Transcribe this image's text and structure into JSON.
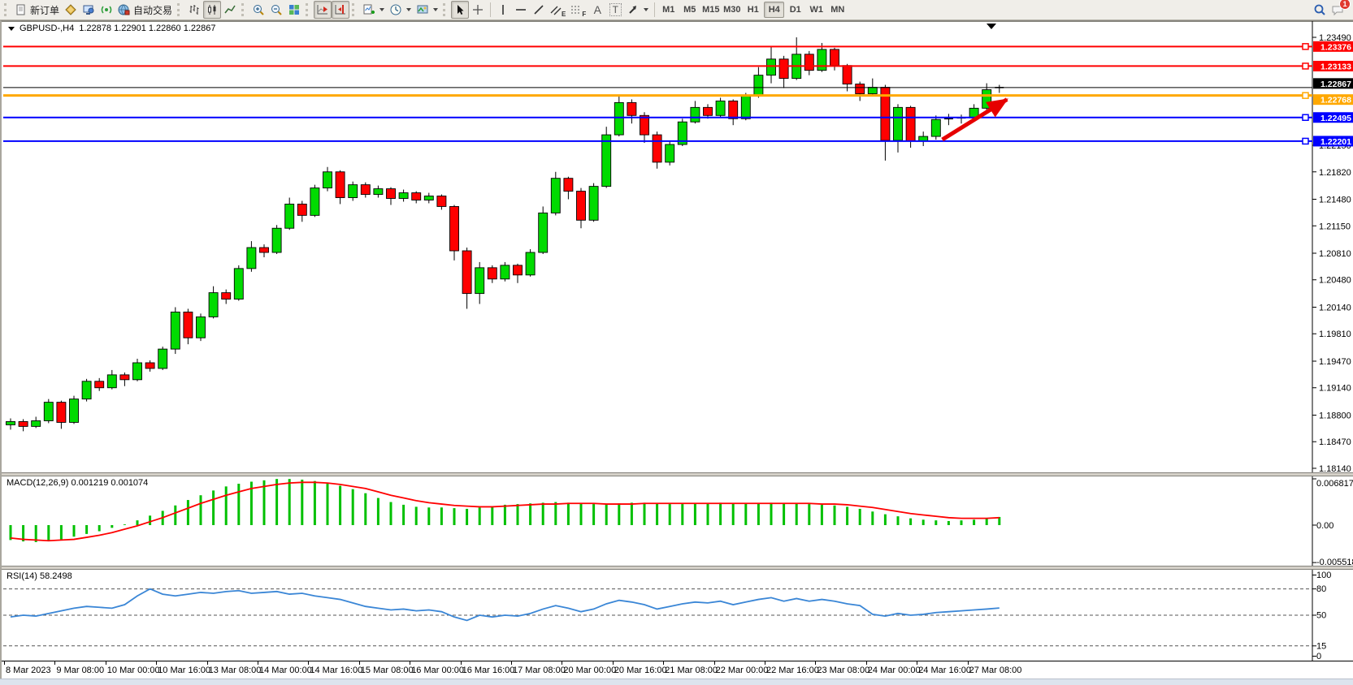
{
  "toolbar": {
    "new_order_label": "新订单",
    "auto_trading_label": "自动交易",
    "channel_letter": "E",
    "fibo_letter": "F",
    "text_letter": "A",
    "label_letter": "T",
    "timeframes": [
      "M1",
      "M5",
      "M15",
      "M30",
      "H1",
      "H4",
      "D1",
      "W1",
      "MN"
    ],
    "active_timeframe": "H4",
    "notification_count": "1"
  },
  "chart_header": {
    "symbol": "GBPUSD-,H4",
    "quotes": "1.22878 1.22901 1.22860 1.22867"
  },
  "indicators": {
    "macd_label": "MACD(12,26,9) 0.001219 0.001074",
    "rsi_label": "RSI(14) 58.2498"
  },
  "chart_data": {
    "type": "candlestick",
    "symbol": "GBPUSD-",
    "timeframe": "H4",
    "ohlc_current": {
      "open": 1.22878,
      "high": 1.22901,
      "low": 1.2286,
      "close": 1.22867
    },
    "price_range": [
      1.1814,
      1.2349
    ],
    "y_axis_ticks": [
      "1.23490",
      "1.22150",
      "1.21820",
      "1.21480",
      "1.21150",
      "1.20810",
      "1.20480",
      "1.20140",
      "1.19810",
      "1.19470",
      "1.19140",
      "1.18800",
      "1.18470",
      "1.18140"
    ],
    "x_axis_ticks": [
      "8 Mar 2023",
      "9 Mar 08:00",
      "10 Mar 00:00",
      "10 Mar 16:00",
      "13 Mar 08:00",
      "14 Mar 00:00",
      "14 Mar 16:00",
      "15 Mar 08:00",
      "16 Mar 00:00",
      "16 Mar 16:00",
      "17 Mar 08:00",
      "20 Mar 00:00",
      "20 Mar 16:00",
      "21 Mar 08:00",
      "22 Mar 00:00",
      "22 Mar 16:00",
      "23 Mar 08:00",
      "24 Mar 00:00",
      "24 Mar 16:00",
      "27 Mar 08:00"
    ],
    "hlines": [
      {
        "price": 1.23376,
        "label": "1.23376",
        "color": "#FF0000",
        "width": 2,
        "role": "resistance"
      },
      {
        "price": 1.23133,
        "label": "1.23133",
        "color": "#FF0000",
        "width": 2,
        "role": "resistance"
      },
      {
        "price": 1.22867,
        "label": "1.22867",
        "color": "#000000",
        "width": 1,
        "role": "current"
      },
      {
        "price": 1.22768,
        "label": "1.22768",
        "color": "#FFA800",
        "width": 3,
        "role": "pivot"
      },
      {
        "price": 1.22495,
        "label": "1.22495",
        "color": "#0000FF",
        "width": 2,
        "role": "support"
      },
      {
        "price": 1.22201,
        "label": "1.22201",
        "color": "#0000FF",
        "width": 2,
        "role": "support"
      }
    ],
    "annotation_arrow": {
      "from_bar": 73.5,
      "from_price": 1.2222,
      "to_bar": 79.5,
      "to_price": 1.228,
      "color": "#E60000"
    },
    "candles": [
      [
        1.1868,
        1.1876,
        1.1862,
        1.1872
      ],
      [
        1.1872,
        1.1875,
        1.186,
        1.1866
      ],
      [
        1.1866,
        1.1878,
        1.1864,
        1.1873
      ],
      [
        1.1873,
        1.19,
        1.187,
        1.1896
      ],
      [
        1.1896,
        1.1898,
        1.1863,
        1.1871
      ],
      [
        1.1871,
        1.1904,
        1.1869,
        1.19
      ],
      [
        1.19,
        1.1925,
        1.1897,
        1.1922
      ],
      [
        1.1922,
        1.1926,
        1.191,
        1.1914
      ],
      [
        1.1914,
        1.1936,
        1.1912,
        1.193
      ],
      [
        1.193,
        1.1933,
        1.1916,
        1.1924
      ],
      [
        1.1924,
        1.195,
        1.1922,
        1.1945
      ],
      [
        1.1945,
        1.1948,
        1.1934,
        1.1938
      ],
      [
        1.1938,
        1.1965,
        1.1936,
        1.1962
      ],
      [
        1.1962,
        1.2014,
        1.1956,
        1.2008
      ],
      [
        1.2008,
        1.2012,
        1.1968,
        1.1976
      ],
      [
        1.1976,
        1.2006,
        1.1972,
        1.2002
      ],
      [
        1.2002,
        1.204,
        1.2,
        1.2032
      ],
      [
        1.2032,
        1.2036,
        1.2018,
        1.2024
      ],
      [
        1.2024,
        1.2066,
        1.2022,
        1.2062
      ],
      [
        1.2062,
        1.2096,
        1.2058,
        1.2088
      ],
      [
        1.2088,
        1.2092,
        1.2076,
        1.2082
      ],
      [
        1.2082,
        1.2116,
        1.208,
        1.2112
      ],
      [
        1.2112,
        1.215,
        1.211,
        1.2142
      ],
      [
        1.2142,
        1.2146,
        1.212,
        1.2128
      ],
      [
        1.2128,
        1.2166,
        1.2126,
        1.2162
      ],
      [
        1.2162,
        1.2188,
        1.2158,
        1.2182
      ],
      [
        1.2182,
        1.2184,
        1.2142,
        1.215
      ],
      [
        1.215,
        1.217,
        1.2146,
        1.2166
      ],
      [
        1.2166,
        1.2169,
        1.215,
        1.2154
      ],
      [
        1.2154,
        1.2165,
        1.215,
        1.2161
      ],
      [
        1.2161,
        1.2163,
        1.2141,
        1.2149
      ],
      [
        1.2149,
        1.216,
        1.2145,
        1.2156
      ],
      [
        1.2156,
        1.2158,
        1.2143,
        1.2147
      ],
      [
        1.2147,
        1.2156,
        1.2143,
        1.2152
      ],
      [
        1.2152,
        1.2154,
        1.2135,
        1.2139
      ],
      [
        1.2139,
        1.2141,
        1.2072,
        1.2084
      ],
      [
        1.2084,
        1.2088,
        1.2012,
        1.2031
      ],
      [
        1.2031,
        1.207,
        1.2018,
        1.2063
      ],
      [
        1.2063,
        1.2066,
        1.2044,
        1.2049
      ],
      [
        1.2049,
        1.207,
        1.2046,
        1.2066
      ],
      [
        1.2066,
        1.2068,
        1.2044,
        1.2054
      ],
      [
        1.2054,
        1.2086,
        1.2052,
        1.2082
      ],
      [
        1.2082,
        1.2139,
        1.208,
        1.2131
      ],
      [
        1.2131,
        1.2182,
        1.2128,
        1.2174
      ],
      [
        1.2174,
        1.2176,
        1.2148,
        1.2158
      ],
      [
        1.2158,
        1.2162,
        1.2112,
        1.2122
      ],
      [
        1.2122,
        1.2168,
        1.212,
        1.2164
      ],
      [
        1.2164,
        1.2238,
        1.2162,
        1.2228
      ],
      [
        1.2228,
        1.2278,
        1.2226,
        1.2268
      ],
      [
        1.2268,
        1.2272,
        1.2242,
        1.2252
      ],
      [
        1.2252,
        1.2256,
        1.2218,
        1.2228
      ],
      [
        1.2228,
        1.2232,
        1.2186,
        1.2194
      ],
      [
        1.2194,
        1.222,
        1.219,
        1.2216
      ],
      [
        1.2216,
        1.2248,
        1.2214,
        1.2244
      ],
      [
        1.2244,
        1.227,
        1.2242,
        1.2262
      ],
      [
        1.2262,
        1.2266,
        1.2248,
        1.2252
      ],
      [
        1.2252,
        1.2274,
        1.225,
        1.227
      ],
      [
        1.227,
        1.2272,
        1.224,
        1.2248
      ],
      [
        1.2248,
        1.228,
        1.2246,
        1.2276
      ],
      [
        1.2276,
        1.2312,
        1.2274,
        1.2302
      ],
      [
        1.2302,
        1.2338,
        1.2292,
        1.2322
      ],
      [
        1.2322,
        1.2326,
        1.2286,
        1.2298
      ],
      [
        1.2298,
        1.2349,
        1.2296,
        1.2328
      ],
      [
        1.2328,
        1.2332,
        1.2302,
        1.2308
      ],
      [
        1.2308,
        1.2342,
        1.2306,
        1.2334
      ],
      [
        1.2334,
        1.2336,
        1.2308,
        1.2314
      ],
      [
        1.2314,
        1.2316,
        1.2282,
        1.2291
      ],
      [
        1.2291,
        1.2294,
        1.227,
        1.2279
      ],
      [
        1.2279,
        1.2298,
        1.2276,
        1.2287
      ],
      [
        1.2287,
        1.229,
        1.2196,
        1.2221
      ],
      [
        1.2221,
        1.2266,
        1.2206,
        1.2262
      ],
      [
        1.2262,
        1.2264,
        1.2212,
        1.222
      ],
      [
        1.222,
        1.2232,
        1.2214,
        1.2226
      ],
      [
        1.2226,
        1.2252,
        1.2222,
        1.2247
      ],
      [
        1.2247,
        1.2254,
        1.224,
        1.2248
      ],
      [
        1.2248,
        1.2253,
        1.2242,
        1.2249
      ],
      [
        1.2249,
        1.2266,
        1.2246,
        1.2261
      ],
      [
        1.2261,
        1.2292,
        1.2258,
        1.2284
      ],
      [
        1.2284,
        1.229,
        1.228,
        1.22867
      ]
    ],
    "macd": {
      "params": "12,26,9",
      "value": 0.001219,
      "signal_value": 0.001074,
      "scale_max": 0.006817,
      "scale_min": -0.005518,
      "axis_labels": [
        "0.006817",
        "0.00",
        "-0.005518"
      ],
      "hist": [
        -0.0022,
        -0.0024,
        -0.0025,
        -0.0023,
        -0.0021,
        -0.0017,
        -0.0013,
        -0.0009,
        -0.0004,
        0.0001,
        0.0007,
        0.0014,
        0.0021,
        0.0029,
        0.0037,
        0.0044,
        0.0051,
        0.0057,
        0.0061,
        0.0064,
        0.0066,
        0.0068,
        0.0068,
        0.0067,
        0.0065,
        0.0062,
        0.0058,
        0.0053,
        0.0047,
        0.004,
        0.0034,
        0.003,
        0.0027,
        0.0026,
        0.0026,
        0.0025,
        0.0024,
        0.0026,
        0.0028,
        0.003,
        0.0031,
        0.0032,
        0.0033,
        0.0034,
        0.0033,
        0.0032,
        0.0031,
        0.0031,
        0.0032,
        0.0033,
        0.0033,
        0.0032,
        0.0031,
        0.0031,
        0.0032,
        0.0032,
        0.0033,
        0.0032,
        0.0032,
        0.0032,
        0.0033,
        0.0032,
        0.0032,
        0.0031,
        0.003,
        0.0029,
        0.0027,
        0.0024,
        0.002,
        0.0016,
        0.0013,
        0.001,
        0.0008,
        0.0007,
        0.0006,
        0.0007,
        0.0008,
        0.001,
        0.0012
      ],
      "signal": [
        -0.0019,
        -0.0021,
        -0.0022,
        -0.0023,
        -0.0022,
        -0.0021,
        -0.0018,
        -0.0015,
        -0.0011,
        -0.0006,
        -0.0001,
        0.0005,
        0.0011,
        0.0018,
        0.0025,
        0.0032,
        0.0038,
        0.0044,
        0.0049,
        0.0054,
        0.0057,
        0.006,
        0.0062,
        0.0063,
        0.0063,
        0.0062,
        0.006,
        0.0057,
        0.0054,
        0.0049,
        0.0044,
        0.004,
        0.0036,
        0.0033,
        0.0031,
        0.0029,
        0.0028,
        0.0027,
        0.0027,
        0.0028,
        0.0029,
        0.003,
        0.0031,
        0.0031,
        0.0032,
        0.0032,
        0.0032,
        0.0031,
        0.0031,
        0.0031,
        0.0032,
        0.0032,
        0.0032,
        0.0032,
        0.0032,
        0.0032,
        0.0032,
        0.0032,
        0.0032,
        0.0032,
        0.0032,
        0.0032,
        0.0032,
        0.0032,
        0.0031,
        0.0031,
        0.003,
        0.0028,
        0.0026,
        0.0023,
        0.002,
        0.0017,
        0.0015,
        0.0013,
        0.0011,
        0.001,
        0.001,
        0.001,
        0.0011
      ]
    },
    "rsi": {
      "period": 14,
      "value": 58.2498,
      "levels": [
        80,
        50,
        15
      ],
      "axis_labels": [
        "100",
        "80",
        "50",
        "15",
        "0"
      ],
      "values": [
        48,
        50,
        49,
        52,
        55,
        58,
        60,
        59,
        58,
        62,
        72,
        80,
        74,
        72,
        74,
        76,
        75,
        77,
        78,
        75,
        76,
        77,
        74,
        75,
        72,
        70,
        68,
        64,
        60,
        58,
        56,
        57,
        55,
        56,
        54,
        48,
        44,
        50,
        48,
        50,
        49,
        52,
        57,
        61,
        58,
        54,
        57,
        63,
        67,
        65,
        62,
        57,
        60,
        63,
        65,
        64,
        66,
        62,
        65,
        68,
        70,
        66,
        69,
        66,
        68,
        66,
        63,
        61,
        51,
        49,
        52,
        50,
        51,
        53,
        54,
        55,
        56,
        57,
        58.25
      ]
    }
  }
}
